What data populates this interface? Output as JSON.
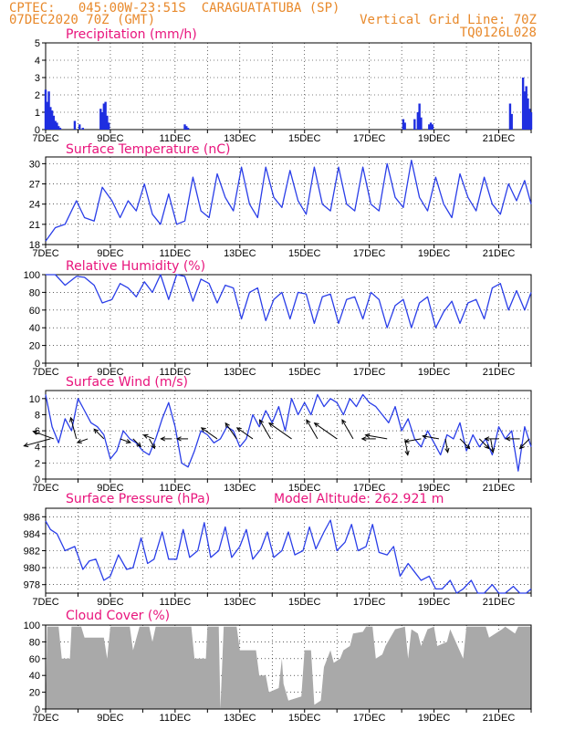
{
  "header": {
    "line1": "CPTEC:   045:00W-23:51S  CARAGUATATUBA (SP)",
    "line2": "07DEC2020 70Z (GMT)",
    "grid_note": "Vertical Grid Line: 70Z",
    "code": "TQ0126L028"
  },
  "colors": {
    "header": "#e8892b",
    "title": "#e8147c",
    "line": "#2a3ee8",
    "bar": "#1f2ee0",
    "cloud": "#a9a9a9",
    "wind_arrow": "#000000"
  },
  "x_axis": {
    "range_days": [
      7,
      22
    ],
    "tick_labels": [
      "7DEC",
      "9DEC",
      "11DEC",
      "13DEC",
      "15DEC",
      "17DEC",
      "19DEC",
      "21DEC"
    ],
    "tick_days": [
      7,
      9,
      11,
      13,
      15,
      17,
      19,
      21
    ]
  },
  "chart_data": [
    {
      "type": "bar",
      "title": "Precipitation (mm/h)",
      "ylim": [
        0,
        5
      ],
      "yticks": [
        "0",
        "1",
        "2",
        "3",
        "4",
        "5"
      ],
      "x": [
        7.0,
        7.05,
        7.1,
        7.15,
        7.2,
        7.25,
        7.3,
        7.35,
        7.4,
        7.45,
        7.9,
        8.05,
        8.15,
        8.7,
        8.75,
        8.8,
        8.85,
        8.9,
        8.95,
        11.3,
        11.35,
        11.4,
        18.05,
        18.1,
        18.4,
        18.5,
        18.55,
        18.6,
        18.85,
        18.9,
        18.95,
        21.35,
        21.4,
        21.75,
        21.8,
        21.85,
        21.9,
        21.95,
        22.0
      ],
      "values": [
        2.3,
        1.6,
        2.2,
        1.3,
        1.1,
        0.8,
        0.5,
        0.4,
        0.2,
        0.1,
        0.5,
        0.3,
        0.1,
        1.2,
        1.0,
        1.5,
        1.6,
        0.8,
        0.4,
        0.3,
        0.2,
        0.1,
        0.6,
        0.4,
        0.6,
        1.0,
        1.5,
        0.7,
        0.3,
        0.4,
        0.3,
        1.5,
        0.9,
        3.0,
        2.2,
        2.5,
        1.8,
        1.2,
        1.0
      ]
    },
    {
      "type": "line",
      "title": "Surface Temperature (nC)",
      "ylim": [
        18,
        31
      ],
      "yticks": [
        "18",
        "21",
        "24",
        "27",
        "30"
      ],
      "x": [
        7.0,
        7.3,
        7.6,
        7.95,
        8.2,
        8.5,
        8.75,
        9.05,
        9.3,
        9.55,
        9.8,
        10.05,
        10.3,
        10.55,
        10.8,
        11.05,
        11.3,
        11.55,
        11.8,
        12.05,
        12.3,
        12.55,
        12.8,
        13.05,
        13.3,
        13.55,
        13.8,
        14.05,
        14.3,
        14.55,
        14.8,
        15.05,
        15.3,
        15.55,
        15.8,
        16.05,
        16.3,
        16.55,
        16.8,
        17.05,
        17.3,
        17.55,
        17.8,
        18.05,
        18.3,
        18.55,
        18.8,
        19.05,
        19.3,
        19.55,
        19.8,
        20.05,
        20.3,
        20.55,
        20.8,
        21.05,
        21.3,
        21.55,
        21.8,
        22.0
      ],
      "values": [
        18.5,
        20.5,
        21.0,
        24.5,
        22.0,
        21.5,
        26.5,
        24.5,
        22.0,
        24.5,
        23.0,
        27.0,
        22.5,
        21.0,
        25.5,
        21.0,
        21.5,
        28.0,
        23.0,
        22.0,
        28.5,
        25.0,
        23.0,
        29.5,
        24.0,
        22.0,
        29.5,
        25.0,
        23.5,
        29.0,
        24.5,
        22.5,
        29.5,
        24.0,
        23.0,
        29.5,
        24.0,
        23.0,
        29.5,
        24.0,
        23.0,
        30.0,
        25.0,
        23.5,
        30.5,
        25.0,
        23.0,
        28.0,
        24.0,
        22.0,
        28.5,
        25.0,
        23.0,
        28.0,
        24.0,
        22.5,
        27.0,
        24.5,
        27.5,
        24.0
      ]
    },
    {
      "type": "line",
      "title": "Relative Humidity (%)",
      "ylim": [
        0,
        100
      ],
      "yticks": [
        "0",
        "20",
        "40",
        "60",
        "80",
        "100"
      ],
      "x": [
        7.0,
        7.3,
        7.6,
        7.95,
        8.2,
        8.5,
        8.75,
        9.05,
        9.3,
        9.55,
        9.8,
        10.05,
        10.3,
        10.55,
        10.8,
        11.05,
        11.3,
        11.55,
        11.8,
        12.05,
        12.3,
        12.55,
        12.8,
        13.05,
        13.3,
        13.55,
        13.8,
        14.05,
        14.3,
        14.55,
        14.8,
        15.05,
        15.3,
        15.55,
        15.8,
        16.05,
        16.3,
        16.55,
        16.8,
        17.05,
        17.3,
        17.55,
        17.8,
        18.05,
        18.3,
        18.55,
        18.8,
        19.05,
        19.3,
        19.55,
        19.8,
        20.05,
        20.3,
        20.55,
        20.8,
        21.05,
        21.3,
        21.55,
        21.8,
        22.0
      ],
      "values": [
        100,
        100,
        88,
        98,
        97,
        88,
        68,
        72,
        90,
        85,
        75,
        92,
        80,
        100,
        72,
        100,
        98,
        70,
        95,
        90,
        68,
        88,
        85,
        50,
        80,
        85,
        48,
        72,
        80,
        50,
        80,
        78,
        45,
        75,
        78,
        45,
        72,
        75,
        50,
        80,
        72,
        40,
        65,
        72,
        40,
        68,
        75,
        40,
        58,
        70,
        45,
        68,
        72,
        50,
        85,
        90,
        60,
        82,
        60,
        80
      ]
    },
    {
      "type": "line",
      "title": "Surface Wind (m/s)",
      "ylim": [
        0,
        11
      ],
      "yticks": [
        "0",
        "2",
        "4",
        "6",
        "8",
        "10"
      ],
      "x": [
        7.0,
        7.2,
        7.4,
        7.6,
        7.8,
        8.0,
        8.2,
        8.4,
        8.6,
        8.8,
        9.0,
        9.2,
        9.4,
        9.6,
        9.8,
        10.0,
        10.2,
        10.4,
        10.6,
        10.8,
        11.0,
        11.2,
        11.4,
        11.6,
        11.8,
        12.0,
        12.2,
        12.4,
        12.6,
        12.8,
        13.0,
        13.2,
        13.4,
        13.6,
        13.8,
        14.0,
        14.2,
        14.4,
        14.6,
        14.8,
        15.0,
        15.2,
        15.4,
        15.6,
        15.8,
        16.0,
        16.2,
        16.4,
        16.6,
        16.8,
        17.0,
        17.2,
        17.4,
        17.6,
        17.8,
        18.0,
        18.2,
        18.4,
        18.6,
        18.8,
        19.0,
        19.2,
        19.4,
        19.6,
        19.8,
        20.0,
        20.2,
        20.4,
        20.6,
        20.8,
        21.0,
        21.2,
        21.4,
        21.6,
        21.8,
        22.0
      ],
      "values": [
        10.5,
        6.5,
        4.5,
        7.5,
        6.0,
        10.0,
        8.5,
        7.0,
        6.5,
        5.5,
        2.5,
        3.5,
        6.0,
        5.0,
        4.5,
        3.5,
        3.0,
        5.0,
        7.5,
        9.5,
        6.5,
        2.0,
        1.5,
        3.5,
        6.0,
        5.5,
        4.5,
        5.0,
        6.5,
        6.0,
        4.0,
        5.0,
        8.0,
        6.5,
        8.5,
        7.0,
        9.0,
        6.0,
        10.0,
        8.0,
        9.5,
        8.0,
        10.5,
        9.0,
        10.0,
        9.5,
        8.0,
        10.0,
        9.0,
        10.5,
        9.5,
        9.0,
        8.0,
        7.0,
        9.0,
        6.0,
        7.5,
        5.0,
        4.0,
        6.0,
        4.5,
        3.0,
        5.5,
        5.0,
        7.0,
        3.5,
        5.5,
        4.0,
        5.0,
        3.0,
        6.5,
        5.0,
        6.0,
        1.0,
        6.5,
        4.0
      ],
      "arrows": [
        {
          "day": 7.15,
          "dir_deg": 165,
          "speed": 8
        },
        {
          "day": 7.25,
          "dir_deg": 200,
          "speed": 6
        },
        {
          "day": 7.95,
          "dir_deg": 255,
          "speed": 6
        },
        {
          "day": 8.3,
          "dir_deg": 160,
          "speed": 2
        },
        {
          "day": 8.8,
          "dir_deg": 225,
          "speed": 3
        },
        {
          "day": 9.3,
          "dir_deg": 20,
          "speed": 2
        },
        {
          "day": 9.7,
          "dir_deg": 45,
          "speed": 2
        },
        {
          "day": 10.2,
          "dir_deg": 60,
          "speed": 2
        },
        {
          "day": 10.35,
          "dir_deg": 200,
          "speed": 2
        },
        {
          "day": 10.9,
          "dir_deg": 180,
          "speed": 2
        },
        {
          "day": 11.4,
          "dir_deg": 180,
          "speed": 2
        },
        {
          "day": 12.3,
          "dir_deg": 215,
          "speed": 5
        },
        {
          "day": 12.9,
          "dir_deg": 235,
          "speed": 5
        },
        {
          "day": 13.4,
          "dir_deg": 215,
          "speed": 5
        },
        {
          "day": 13.95,
          "dir_deg": 240,
          "speed": 6
        },
        {
          "day": 14.6,
          "dir_deg": 215,
          "speed": 8
        },
        {
          "day": 15.4,
          "dir_deg": 240,
          "speed": 6
        },
        {
          "day": 16.0,
          "dir_deg": 215,
          "speed": 8
        },
        {
          "day": 16.5,
          "dir_deg": 240,
          "speed": 6
        },
        {
          "day": 17.2,
          "dir_deg": 180,
          "speed": 3
        },
        {
          "day": 17.55,
          "dir_deg": 190,
          "speed": 6
        },
        {
          "day": 18.1,
          "dir_deg": 80,
          "speed": 4
        },
        {
          "day": 18.6,
          "dir_deg": 170,
          "speed": 4
        },
        {
          "day": 19.15,
          "dir_deg": 190,
          "speed": 4
        },
        {
          "day": 19.35,
          "dir_deg": 80,
          "speed": 3
        },
        {
          "day": 19.8,
          "dir_deg": 45,
          "speed": 3
        },
        {
          "day": 20.4,
          "dir_deg": 45,
          "speed": 3
        },
        {
          "day": 20.75,
          "dir_deg": 80,
          "speed": 3
        },
        {
          "day": 21.0,
          "dir_deg": 180,
          "speed": 3
        },
        {
          "day": 21.65,
          "dir_deg": 180,
          "speed": 3
        },
        {
          "day": 21.95,
          "dir_deg": 135,
          "speed": 3
        }
      ]
    },
    {
      "type": "line",
      "title": "Surface Pressure (hPa)",
      "model_altitude": "Model Altitude: 262.921  m",
      "ylim": [
        977,
        987
      ],
      "yticks": [
        "978",
        "980",
        "982",
        "984",
        "986"
      ],
      "x": [
        7.0,
        7.15,
        7.35,
        7.6,
        7.9,
        8.15,
        8.35,
        8.55,
        8.8,
        9.0,
        9.25,
        9.5,
        9.7,
        9.95,
        10.15,
        10.35,
        10.6,
        10.8,
        11.05,
        11.25,
        11.45,
        11.7,
        11.9,
        12.1,
        12.35,
        12.55,
        12.75,
        13.0,
        13.2,
        13.4,
        13.65,
        13.85,
        14.05,
        14.3,
        14.5,
        14.7,
        14.95,
        15.15,
        15.35,
        15.6,
        15.8,
        16.0,
        16.25,
        16.45,
        16.65,
        16.9,
        17.1,
        17.3,
        17.55,
        17.75,
        17.95,
        18.2,
        18.4,
        18.6,
        18.85,
        19.05,
        19.25,
        19.5,
        19.7,
        19.9,
        20.15,
        20.35,
        20.55,
        20.8,
        21.0,
        21.2,
        21.45,
        21.65,
        21.85,
        22.0
      ],
      "values": [
        985.5,
        984.5,
        984.0,
        982.0,
        982.5,
        979.8,
        980.8,
        981.0,
        978.5,
        979.0,
        981.5,
        979.8,
        980.0,
        983.5,
        980.5,
        981.0,
        984.2,
        981.0,
        981.0,
        984.5,
        981.2,
        982.0,
        985.3,
        981.2,
        982.0,
        984.8,
        981.2,
        982.5,
        984.5,
        981.0,
        982.2,
        984.2,
        981.2,
        982.0,
        984.2,
        981.5,
        982.0,
        984.8,
        982.2,
        984.2,
        985.6,
        982.0,
        983.0,
        985.1,
        982.0,
        982.5,
        985.1,
        981.8,
        981.5,
        982.5,
        979.0,
        980.5,
        979.5,
        978.5,
        979.0,
        977.5,
        977.5,
        978.5,
        977.0,
        977.5,
        978.5,
        976.8,
        977.0,
        978.0,
        976.5,
        976.8,
        977.8,
        976.4,
        976.6,
        977.5
      ]
    },
    {
      "type": "area",
      "title": "Cloud Cover (%)",
      "ylim": [
        0,
        100
      ],
      "yticks": [
        "0",
        "20",
        "40",
        "60",
        "80",
        "100"
      ],
      "x": [
        7.0,
        7.05,
        7.4,
        7.5,
        7.75,
        7.8,
        8.1,
        8.2,
        8.8,
        8.9,
        9.0,
        9.6,
        9.7,
        9.9,
        10.2,
        10.3,
        10.4,
        11.5,
        11.6,
        11.95,
        12.0,
        12.35,
        12.4,
        12.5,
        12.55,
        12.9,
        13.0,
        13.5,
        13.6,
        13.8,
        13.9,
        14.2,
        14.3,
        14.35,
        14.5,
        14.9,
        15.0,
        15.2,
        15.3,
        15.5,
        15.6,
        15.8,
        15.9,
        16.1,
        16.2,
        16.4,
        16.5,
        16.8,
        16.9,
        17.1,
        17.2,
        17.4,
        17.5,
        17.8,
        18.1,
        18.2,
        18.3,
        18.5,
        18.6,
        18.8,
        19.0,
        19.1,
        19.4,
        19.5,
        19.9,
        20.0,
        20.6,
        20.7,
        21.1,
        21.2,
        21.5,
        21.6,
        21.9,
        22.0
      ],
      "values": [
        0,
        98,
        98,
        60,
        60,
        98,
        98,
        85,
        85,
        60,
        98,
        98,
        70,
        98,
        98,
        80,
        98,
        98,
        60,
        60,
        98,
        98,
        0,
        98,
        98,
        98,
        70,
        70,
        40,
        40,
        20,
        25,
        60,
        30,
        10,
        15,
        70,
        70,
        5,
        10,
        50,
        70,
        55,
        60,
        70,
        75,
        90,
        92,
        98,
        98,
        60,
        65,
        75,
        95,
        98,
        60,
        95,
        90,
        75,
        95,
        98,
        75,
        80,
        95,
        60,
        98,
        98,
        85,
        95,
        98,
        90,
        98,
        98,
        98
      ]
    }
  ]
}
